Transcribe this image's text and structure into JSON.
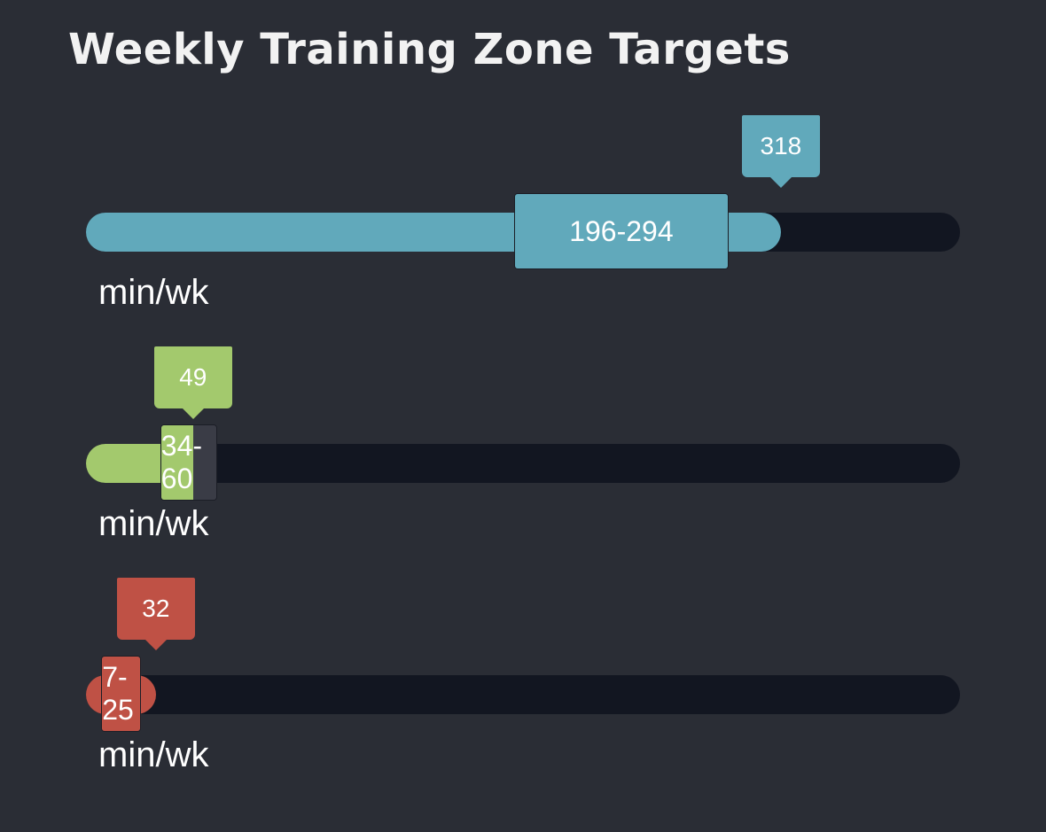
{
  "title": "Weekly Training Zone Targets",
  "chart_data": {
    "type": "bullet",
    "title": "Weekly Training Zone Targets",
    "scale_max": 400,
    "bars": [
      {
        "value": 318,
        "value_label": "318",
        "target_min": 196,
        "target_max": 294,
        "target_label": "196-294",
        "unit": "min/wk",
        "color": "#61a9bb"
      },
      {
        "value": 49,
        "value_label": "49",
        "target_min": 34,
        "target_max": 60,
        "target_label": "34-60",
        "unit": "min/wk",
        "color": "#a3c96d"
      },
      {
        "value": 32,
        "value_label": "32",
        "target_min": 7,
        "target_max": 25,
        "target_label": "7-25",
        "unit": "min/wk",
        "color": "#bf5145"
      }
    ]
  }
}
